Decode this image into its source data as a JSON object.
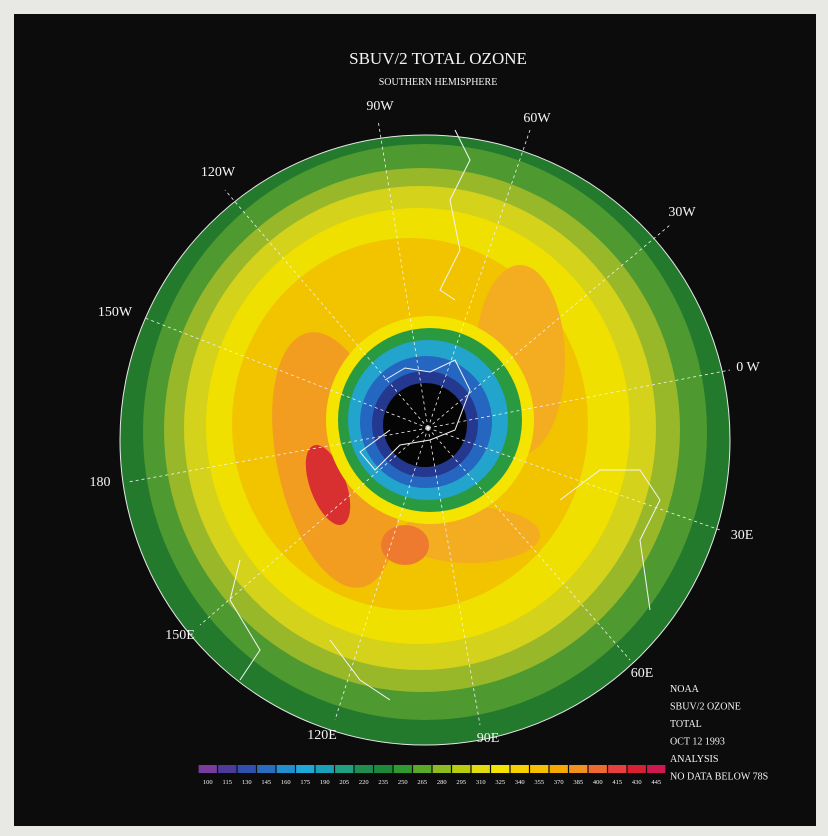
{
  "header": {
    "title": "SBUV/2 TOTAL OZONE",
    "subtitle": "SOUTHERN HEMISPHERE"
  },
  "longitudes": [
    "90W",
    "60W",
    "120W",
    "30W",
    "150W",
    "0 W",
    "180",
    "30E",
    "150E",
    "60E",
    "120E",
    "90E"
  ],
  "legend": {
    "ticks": [
      100,
      115,
      130,
      145,
      160,
      175,
      190,
      205,
      220,
      235,
      250,
      265,
      280,
      295,
      310,
      325,
      340,
      355,
      370,
      385,
      400,
      415,
      430,
      445
    ],
    "colors": [
      "#7a3c9a",
      "#4b3c9c",
      "#3050b0",
      "#2a6cc0",
      "#2290d0",
      "#20a8d8",
      "#1aa0b8",
      "#20a080",
      "#1e8f50",
      "#1c8a3a",
      "#2e9a30",
      "#5aaa28",
      "#8cbc20",
      "#b8cc10",
      "#e0dc10",
      "#f2e400",
      "#f6d000",
      "#f6c000",
      "#f4a800",
      "#f49020",
      "#ee6a30",
      "#e84040",
      "#d82030",
      "#d01850"
    ]
  },
  "info": [
    "NOAA",
    "SBUV/2 OZONE",
    "TOTAL",
    "OCT 12 1993",
    "ANALYSIS",
    "NO DATA BELOW 78S"
  ]
}
